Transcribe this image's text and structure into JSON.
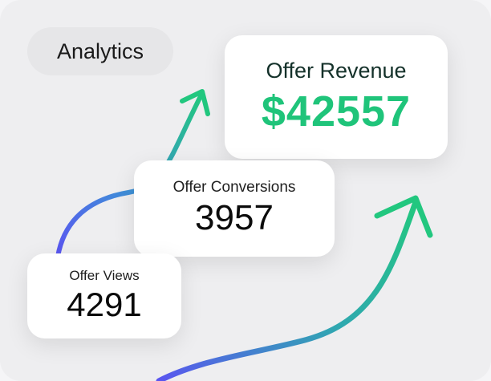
{
  "badge": {
    "label": "Analytics"
  },
  "cards": {
    "revenue": {
      "label": "Offer Revenue",
      "value": "$42557"
    },
    "conversions": {
      "label": "Offer Conversions",
      "value": "3957"
    },
    "views": {
      "label": "Offer Views",
      "value": "4291"
    }
  },
  "colors": {
    "accent_green": "#1fc47a",
    "gradient_blue": "#5a55f0",
    "background": "#eeeef0"
  }
}
